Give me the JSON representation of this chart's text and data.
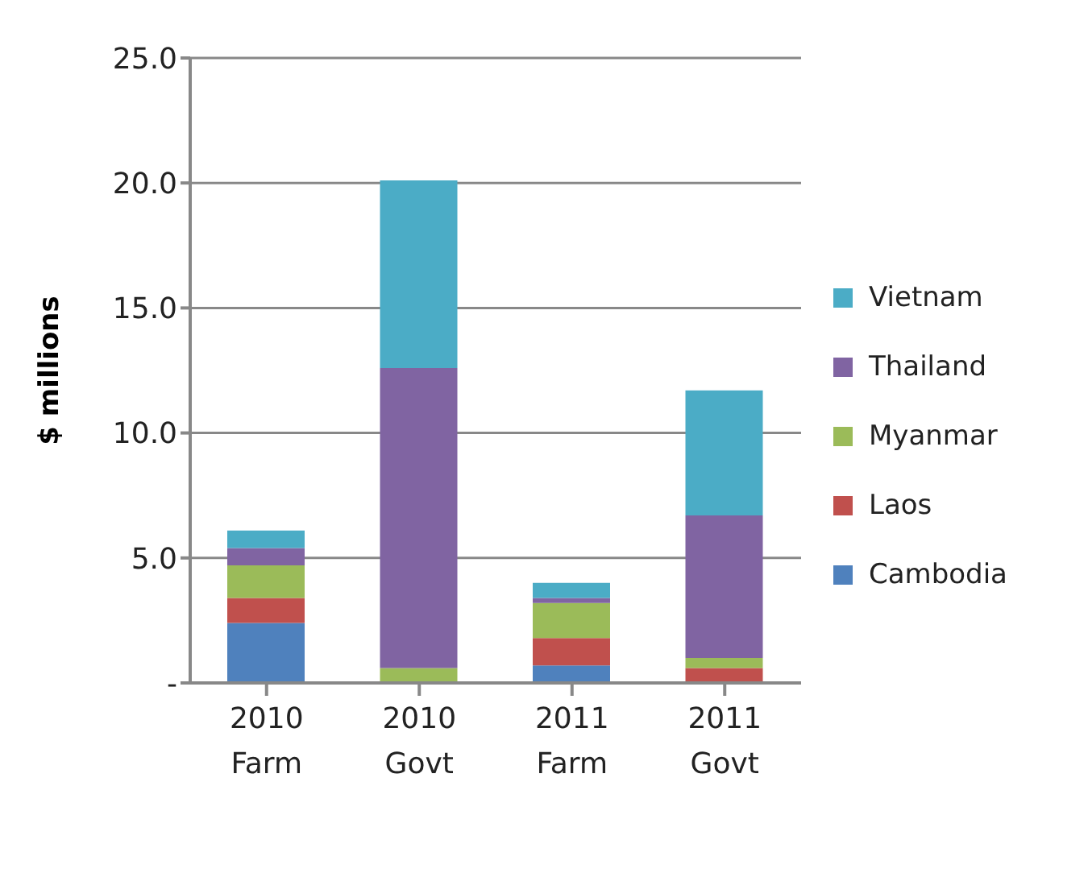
{
  "chart_data": {
    "type": "bar",
    "stacked": true,
    "ylabel": "$ millions",
    "categories": [
      "2010\nFarm",
      "2010\nGovt",
      "2011\nFarm",
      "2011\nGovt"
    ],
    "series": [
      {
        "name": "Cambodia",
        "color": "#4f81bd",
        "values": [
          2.4,
          0,
          0.7,
          0
        ]
      },
      {
        "name": "Laos",
        "color": "#c0504d",
        "values": [
          1.0,
          0,
          1.1,
          0.6
        ]
      },
      {
        "name": "Myanmar",
        "color": "#9bbb59",
        "values": [
          1.3,
          0.6,
          1.4,
          0.4
        ]
      },
      {
        "name": "Thailand",
        "color": "#8064a2",
        "values": [
          0.7,
          12.0,
          0.2,
          5.7
        ]
      },
      {
        "name": "Vietnam",
        "color": "#4bacc6",
        "values": [
          0.7,
          7.5,
          0.6,
          5.0
        ]
      }
    ],
    "ylim": [
      0,
      25
    ],
    "yticks": [
      {
        "value": 0,
        "label": "-"
      },
      {
        "value": 5,
        "label": "5.0"
      },
      {
        "value": 10,
        "label": "10.0"
      },
      {
        "value": 15,
        "label": "15.0"
      },
      {
        "value": 20,
        "label": "20.0"
      },
      {
        "value": 25,
        "label": "25.0"
      }
    ],
    "grid": "y",
    "legend": "right"
  }
}
